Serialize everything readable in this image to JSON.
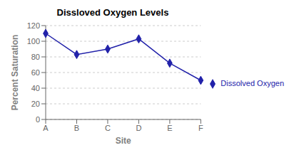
{
  "chart_data": {
    "type": "line",
    "title": "Dissloved Oxygen Levels",
    "xlabel": "Site",
    "ylabel": "Percent Saturation",
    "categories": [
      "A",
      "B",
      "C",
      "D",
      "E",
      "F"
    ],
    "series": [
      {
        "name": "Dissolved Oxygen",
        "color": "#2222AA",
        "marker": "diamond",
        "values": [
          110,
          83,
          90,
          103,
          72,
          50
        ]
      }
    ],
    "ylim": [
      0,
      120
    ],
    "yticks": [
      0,
      20,
      40,
      60,
      80,
      100,
      120
    ],
    "grid": true,
    "legend": "right"
  }
}
